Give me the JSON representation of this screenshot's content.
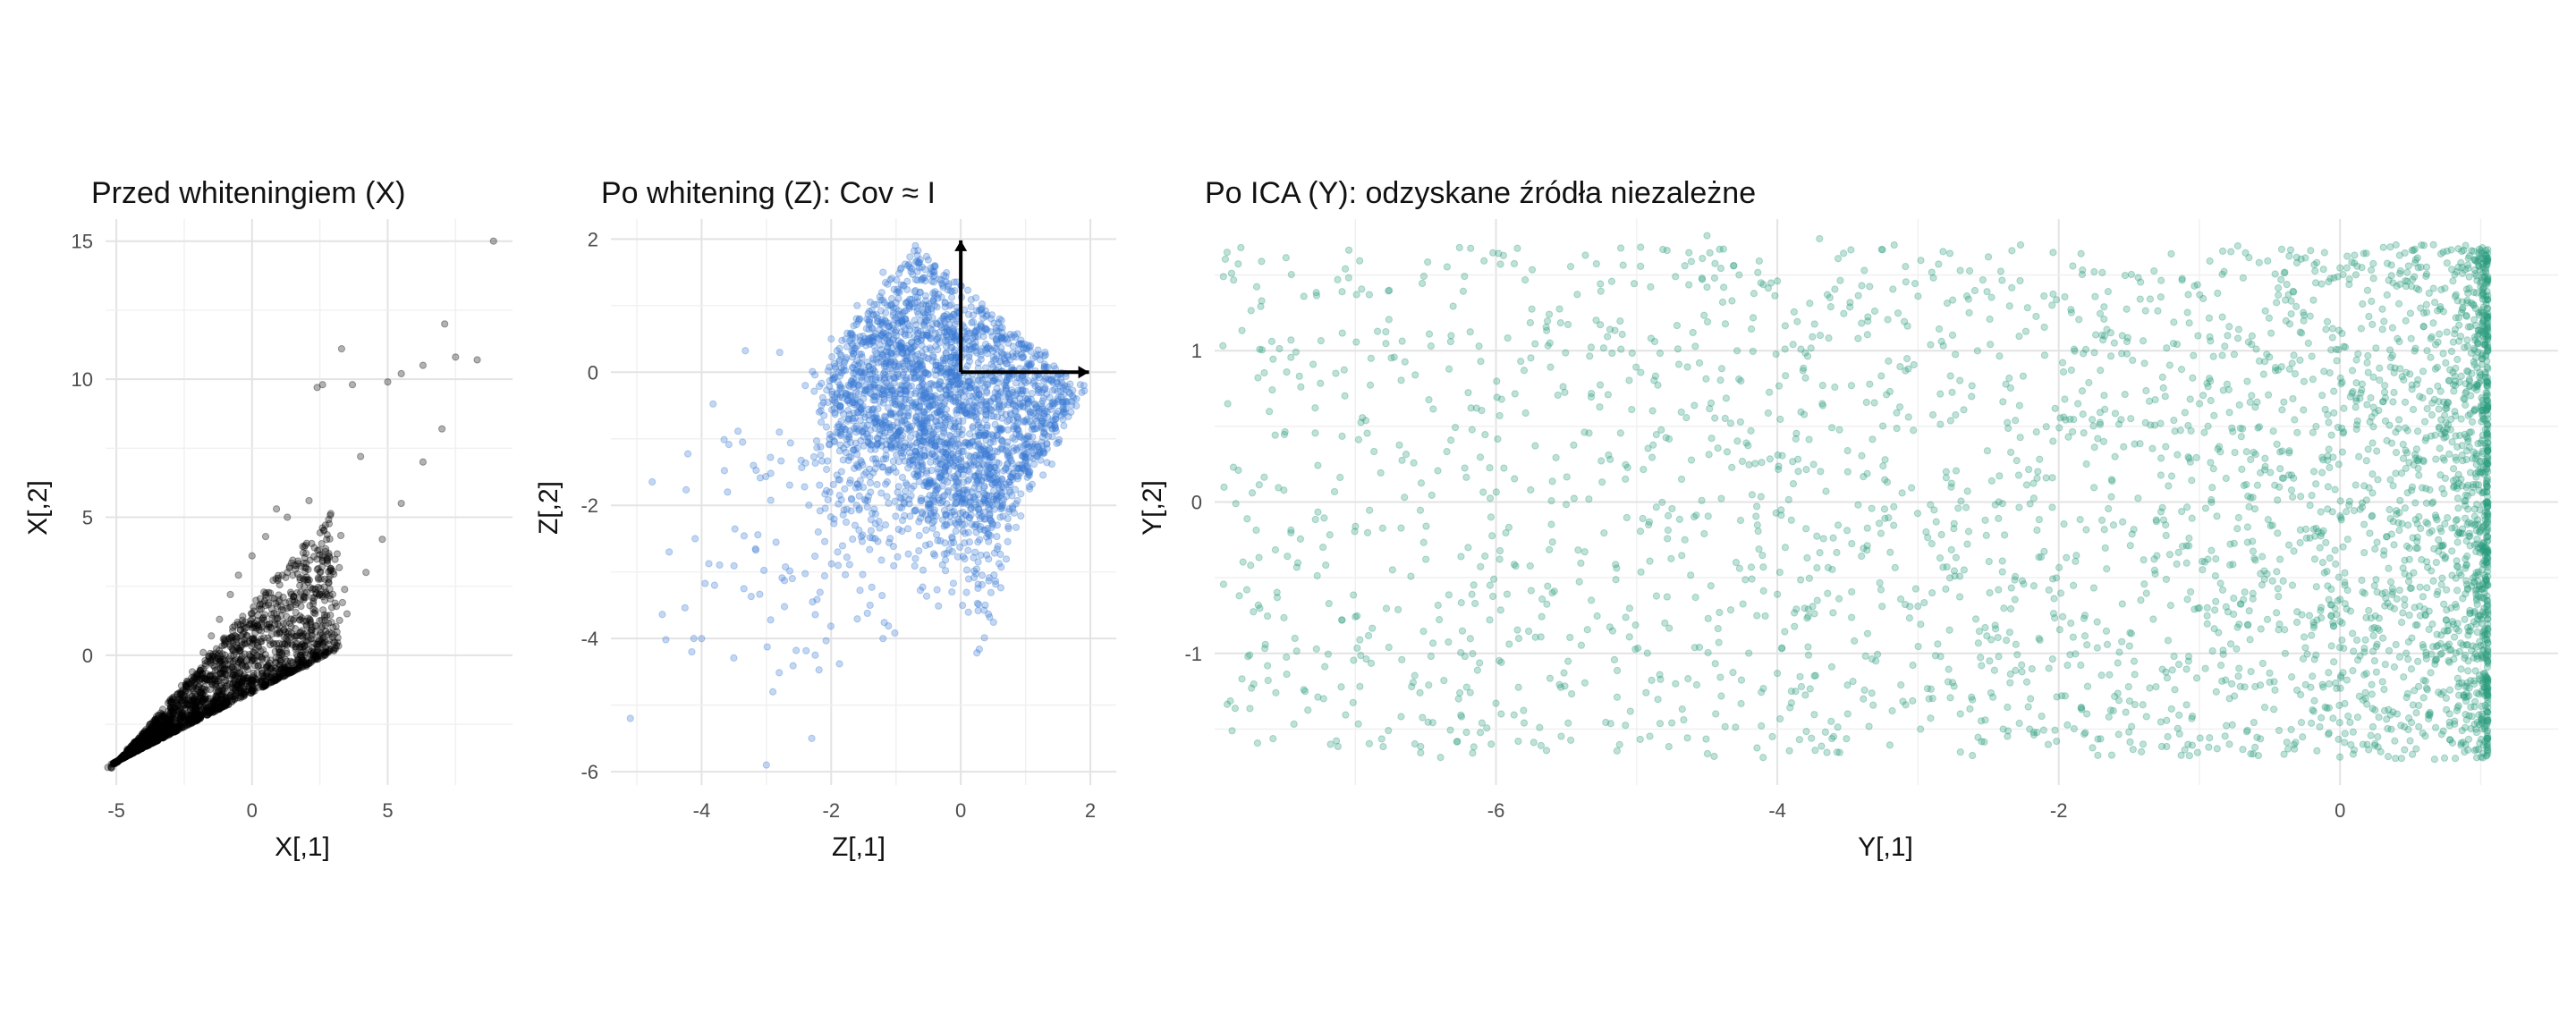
{
  "chart_data": [
    {
      "type": "scatter",
      "title": "Przed whiteningiem (X)",
      "xlabel": "X[,1]",
      "ylabel": "X[,2]",
      "xlim": [
        -5.4,
        9.6
      ],
      "ylim": [
        -4.7,
        15.8
      ],
      "xticks": [
        -5,
        0,
        5
      ],
      "yticks": [
        0,
        5,
        10,
        15
      ],
      "grid": true,
      "point_color": "#000000",
      "point_opacity": 0.3,
      "points_summary": "dense wedge from (-5,-3.8) widening to upper right; shown points are a representative reconstruction of the plotted cloud",
      "points": [
        [
          -4.9,
          -3.8
        ],
        [
          -4.6,
          -3.4
        ],
        [
          -4.2,
          -3.1
        ],
        [
          -3.8,
          -2.6
        ],
        [
          -3.4,
          -2.3
        ],
        [
          -3.0,
          -1.6
        ],
        [
          -2.6,
          -1.1
        ],
        [
          -2.2,
          -0.6
        ],
        [
          -1.8,
          0.1
        ],
        [
          -1.5,
          0.7
        ],
        [
          -1.2,
          1.3
        ],
        [
          -0.8,
          2.2
        ],
        [
          -0.5,
          2.9
        ],
        [
          0.0,
          3.6
        ],
        [
          0.5,
          4.3
        ],
        [
          0.9,
          5.3
        ],
        [
          1.3,
          5.0
        ],
        [
          2.1,
          5.6
        ],
        [
          2.4,
          9.7
        ],
        [
          2.6,
          9.8
        ],
        [
          3.3,
          11.1
        ],
        [
          3.7,
          9.8
        ],
        [
          4.0,
          7.2
        ],
        [
          5.0,
          9.9
        ],
        [
          5.5,
          10.2
        ],
        [
          6.3,
          10.5
        ],
        [
          7.1,
          12.0
        ],
        [
          7.5,
          10.8
        ],
        [
          8.3,
          10.7
        ],
        [
          8.9,
          15.0
        ],
        [
          -3.0,
          -2.4
        ],
        [
          -2.0,
          -1.7
        ],
        [
          -1.0,
          -1.2
        ],
        [
          0.0,
          -0.9
        ],
        [
          1.0,
          -0.6
        ],
        [
          2.0,
          -0.4
        ],
        [
          3.0,
          0.2
        ],
        [
          3.5,
          1.5
        ],
        [
          4.2,
          3.0
        ],
        [
          4.8,
          4.2
        ],
        [
          5.5,
          5.5
        ],
        [
          6.3,
          7.0
        ],
        [
          7.0,
          8.2
        ],
        [
          -1.0,
          0.4
        ],
        [
          0.5,
          1.8
        ],
        [
          1.5,
          2.0
        ],
        [
          2.6,
          3.4
        ],
        [
          0.0,
          1.0
        ],
        [
          -2.0,
          -0.8
        ],
        [
          1.2,
          0.4
        ]
      ]
    },
    {
      "type": "scatter",
      "title": "Po whitening (Z): Cov ≈ I",
      "xlabel": "Z[,1]",
      "ylabel": "Z[,2]",
      "xlim": [
        -5.4,
        2.4
      ],
      "ylim": [
        -6.2,
        2.3
      ],
      "xticks": [
        -4,
        -2,
        0,
        2
      ],
      "yticks": [
        -6,
        -4,
        -2,
        0,
        2
      ],
      "grid": true,
      "point_color": "#3a7bd5",
      "point_opacity": 0.3,
      "points_summary": "dense diamond-shaped region centered near (0,0) with sparse tail to lower left; shown points are a representative reconstruction of the plotted cloud",
      "points": [
        [
          -0.7,
          1.9
        ],
        [
          -1.2,
          1.5
        ],
        [
          -1.6,
          1.0
        ],
        [
          -2.0,
          0.5
        ],
        [
          -2.4,
          -0.2
        ],
        [
          -2.8,
          -0.9
        ],
        [
          -3.2,
          -1.4
        ],
        [
          -3.6,
          -1.8
        ],
        [
          -4.1,
          -2.5
        ],
        [
          -4.0,
          -4.0
        ],
        [
          -5.1,
          -5.2
        ],
        [
          -3.0,
          -5.9
        ],
        [
          -2.3,
          -5.5
        ],
        [
          -2.9,
          -4.8
        ],
        [
          -1.2,
          -4.0
        ],
        [
          -1.4,
          -3.5
        ],
        [
          -0.7,
          -2.8
        ],
        [
          0.3,
          -2.2
        ],
        [
          1.0,
          -1.3
        ],
        [
          1.7,
          -0.6
        ],
        [
          1.9,
          -0.2
        ],
        [
          1.3,
          0.3
        ],
        [
          0.6,
          0.8
        ],
        [
          0.0,
          1.3
        ],
        [
          -0.4,
          1.6
        ],
        [
          -0.8,
          1.0
        ],
        [
          -1.3,
          0.2
        ],
        [
          -1.6,
          -0.5
        ],
        [
          -1.0,
          -1.5
        ],
        [
          -0.2,
          -1.8
        ],
        [
          0.5,
          -1.0
        ],
        [
          0.8,
          0.0
        ],
        [
          -0.1,
          0.3
        ],
        [
          -0.6,
          -0.6
        ],
        [
          -2.2,
          -2.4
        ],
        [
          -3.8,
          -3.2
        ],
        [
          -4.5,
          -2.7
        ],
        [
          -2.6,
          -3.1
        ],
        [
          -1.9,
          -2.7
        ],
        [
          -0.5,
          -2.0
        ]
      ]
    },
    {
      "type": "scatter",
      "title": "Po ICA (Y): odzyskane źródła niezależne",
      "xlabel": "Y[,1]",
      "ylabel": "Y[,2]",
      "xlim": [
        -8.0,
        1.55
      ],
      "ylim": [
        -1.87,
        1.87
      ],
      "xticks": [
        -6,
        -4,
        -2,
        0
      ],
      "yticks": [
        -1,
        0,
        1
      ],
      "grid": true,
      "point_color": "#2a9d7f",
      "point_opacity": 0.3,
      "points_summary": "uniform band between y≈-1.7 and y≈1.7, density increasing toward x≈1; shown points are a representative reconstruction of the plotted cloud",
      "points": [
        [
          -7.3,
          0.91
        ],
        [
          -6.6,
          -1.22
        ],
        [
          -6.1,
          -1.46
        ],
        [
          -6.0,
          -1.33
        ],
        [
          -5.8,
          0.87
        ],
        [
          -5.8,
          -1.46
        ],
        [
          -5.6,
          -0.6
        ],
        [
          -5.2,
          0.31
        ],
        [
          -4.8,
          -0.8
        ],
        [
          -4.7,
          0.91
        ],
        [
          -4.6,
          1.12
        ],
        [
          -4.5,
          1.42
        ],
        [
          -4.5,
          1.76
        ],
        [
          -4.1,
          -0.43
        ],
        [
          -4.0,
          -0.61
        ],
        [
          -4.0,
          1.46
        ],
        [
          -3.9,
          -1.25
        ],
        [
          -3.9,
          -0.12
        ],
        [
          -3.8,
          0.82
        ],
        [
          -3.7,
          1.74
        ],
        [
          -3.6,
          -1.55
        ],
        [
          -3.5,
          -1.4
        ],
        [
          -3.4,
          1.43
        ],
        [
          -3.3,
          -1.05
        ],
        [
          -3.2,
          0.73
        ],
        [
          -3.0,
          1.36
        ],
        [
          -2.9,
          -0.6
        ],
        [
          -2.8,
          0.2
        ],
        [
          -2.7,
          1.53
        ],
        [
          -2.5,
          1.62
        ],
        [
          -2.4,
          -0.39
        ],
        [
          -2.2,
          -1.3
        ],
        [
          -2.1,
          0.97
        ],
        [
          -1.9,
          1.56
        ],
        [
          -1.8,
          -1.4
        ],
        [
          -1.6,
          0.3
        ],
        [
          -1.4,
          -1.6
        ],
        [
          -1.2,
          1.64
        ],
        [
          -1.0,
          -0.7
        ],
        [
          -0.8,
          1.1
        ]
      ]
    }
  ]
}
